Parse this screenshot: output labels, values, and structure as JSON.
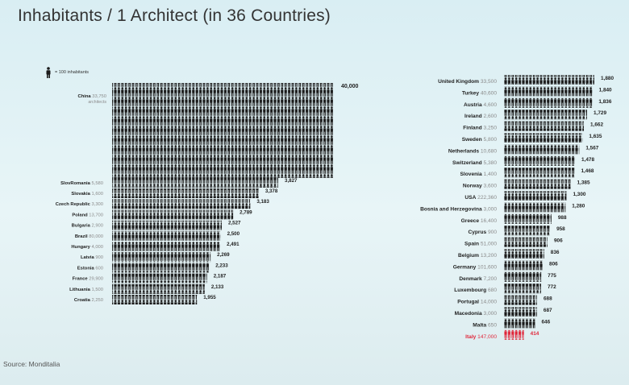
{
  "title": "Inhabitants / 1 Architect (in 36 Countries)",
  "source": "Source: Monditalia",
  "legend": {
    "label": "= 100 inhabitants"
  },
  "colors": {
    "figure": "#1a1a1a",
    "highlight": "#e0263a",
    "background": "#dff0f4",
    "country": "#222222",
    "pop": "#8a8a8a"
  },
  "chart_data": {
    "type": "bar",
    "title": "Inhabitants / 1 Architect (in 36 Countries)",
    "unit_label": "= 100 inhabitants",
    "xlabel": "",
    "ylabel": "",
    "columns": [
      {
        "rows": [
          {
            "country": "China",
            "architects": "33,750",
            "note": "architects",
            "value": 40000,
            "value_label": "40,000"
          },
          {
            "country": "SlovRomania",
            "architects": "5,580",
            "value": 3827,
            "value_label": "3,827"
          },
          {
            "country": "Slovakia",
            "architects": "1,600",
            "value": 3378,
            "value_label": "3,378"
          },
          {
            "country": "Czech Republic",
            "architects": "3,300",
            "value": 3183,
            "value_label": "3,183"
          },
          {
            "country": "Poland",
            "architects": "13,700",
            "value": 2789,
            "value_label": "2,789"
          },
          {
            "country": "Bulgaria",
            "architects": "2,900",
            "value": 2527,
            "value_label": "2,527"
          },
          {
            "country": "Brazil",
            "architects": "80,000",
            "value": 2500,
            "value_label": "2,500"
          },
          {
            "country": "Hungary",
            "architects": "4,000",
            "value": 2491,
            "value_label": "2,491"
          },
          {
            "country": "Latvia",
            "architects": "900",
            "value": 2269,
            "value_label": "2,269"
          },
          {
            "country": "Estonia",
            "architects": "600",
            "value": 2233,
            "value_label": "2,233"
          },
          {
            "country": "France",
            "architects": "29,900",
            "value": 2187,
            "value_label": "2,187"
          },
          {
            "country": "Lithuania",
            "architects": "1,500",
            "value": 2133,
            "value_label": "2,133"
          },
          {
            "country": "Croatia",
            "architects": "2,250",
            "value": 1955,
            "value_label": "1,955"
          }
        ]
      },
      {
        "rows": [
          {
            "country": "United Kingdom",
            "architects": "33,500",
            "value": 1880,
            "value_label": "1,880"
          },
          {
            "country": "Turkey",
            "architects": "40,600",
            "value": 1840,
            "value_label": "1,840"
          },
          {
            "country": "Austria",
            "architects": "4,600",
            "value": 1836,
            "value_label": "1,836"
          },
          {
            "country": "Ireland",
            "architects": "2,600",
            "value": 1729,
            "value_label": "1,729"
          },
          {
            "country": "Finland",
            "architects": "3,250",
            "value": 1662,
            "value_label": "1,662"
          },
          {
            "country": "Sweden",
            "architects": "5,800",
            "value": 1635,
            "value_label": "1,635"
          },
          {
            "country": "Netherlands",
            "architects": "10,680",
            "value": 1567,
            "value_label": "1,567"
          },
          {
            "country": "Switzerland",
            "architects": "5,380",
            "value": 1478,
            "value_label": "1,478"
          },
          {
            "country": "Slovenia",
            "architects": "1,400",
            "value": 1468,
            "value_label": "1,468"
          },
          {
            "country": "Norway",
            "architects": "3,600",
            "value": 1385,
            "value_label": "1,385"
          },
          {
            "country": "USA",
            "architects": "222,360",
            "value": 1300,
            "value_label": "1,300"
          },
          {
            "country": "Bosnia and Herzegovina",
            "architects": "3,000",
            "value": 1280,
            "value_label": "1,280"
          },
          {
            "country": "Greece",
            "architects": "16,400",
            "value": 988,
            "value_label": "988"
          },
          {
            "country": "Cyprus",
            "architects": "900",
            "value": 958,
            "value_label": "958"
          },
          {
            "country": "Spain",
            "architects": "51,000",
            "value": 906,
            "value_label": "906"
          },
          {
            "country": "Belgium",
            "architects": "13,200",
            "value": 836,
            "value_label": "836"
          },
          {
            "country": "Germany",
            "architects": "101,600",
            "value": 806,
            "value_label": "806"
          },
          {
            "country": "Denmark",
            "architects": "7,200",
            "value": 775,
            "value_label": "775"
          },
          {
            "country": "Luxembourg",
            "architects": "680",
            "value": 772,
            "value_label": "772"
          },
          {
            "country": "Portugal",
            "architects": "14,000",
            "value": 688,
            "value_label": "688"
          },
          {
            "country": "Macedonia",
            "architects": "3,000",
            "value": 687,
            "value_label": "687"
          },
          {
            "country": "Malta",
            "architects": "650",
            "value": 646,
            "value_label": "646"
          },
          {
            "country": "Italy",
            "architects": "147,000",
            "value": 414,
            "value_label": "414",
            "highlight": true
          }
        ]
      }
    ]
  }
}
